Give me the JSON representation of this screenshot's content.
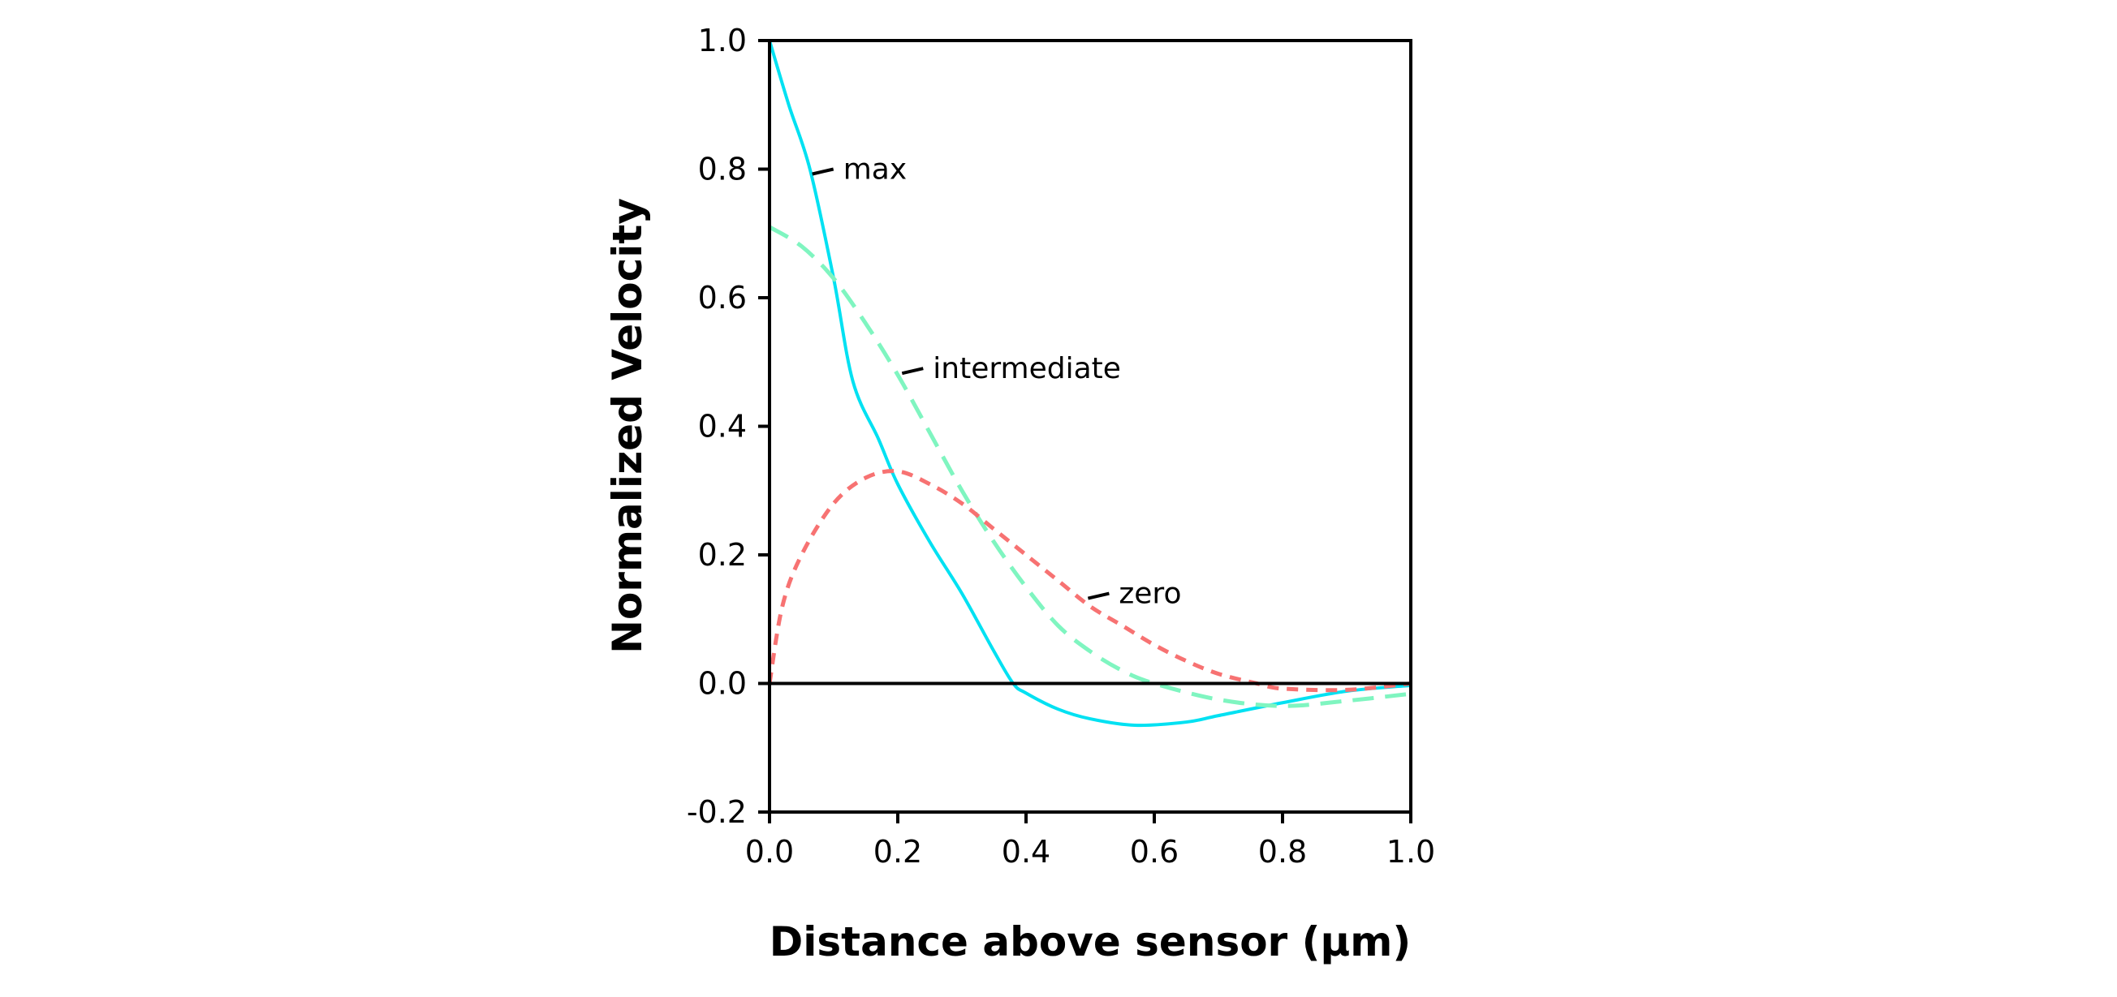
{
  "chart_data": {
    "type": "line",
    "title": "",
    "xlabel": "Distance above sensor (µm)",
    "ylabel": "Normalized Velocity",
    "xlim": [
      0.0,
      1.0
    ],
    "ylim": [
      -0.2,
      1.0
    ],
    "xticks": [
      "0.0",
      "0.2",
      "0.4",
      "0.6",
      "0.8",
      "1.0"
    ],
    "yticks": [
      "-0.2",
      "0.0",
      "0.2",
      "0.4",
      "0.6",
      "0.8",
      "1.0"
    ],
    "grid": false,
    "legend": "none (inline labels)",
    "zero_line": true,
    "series": [
      {
        "name": "max",
        "color": "#00e1f2",
        "style": "solid",
        "x": [
          0.0,
          0.03,
          0.063,
          0.1,
          0.13,
          0.17,
          0.2,
          0.25,
          0.3,
          0.35,
          0.38,
          0.4,
          0.45,
          0.5,
          0.57,
          0.65,
          0.7,
          0.8,
          0.9,
          1.0
        ],
        "y": [
          1.0,
          0.9,
          0.8,
          0.63,
          0.47,
          0.38,
          0.31,
          0.22,
          0.14,
          0.05,
          0.0,
          -0.015,
          -0.04,
          -0.055,
          -0.065,
          -0.06,
          -0.05,
          -0.03,
          -0.012,
          -0.003
        ]
      },
      {
        "name": "intermediate",
        "color": "#7ff5c0",
        "style": "dashed",
        "x": [
          0.0,
          0.05,
          0.1,
          0.15,
          0.2,
          0.25,
          0.3,
          0.35,
          0.4,
          0.45,
          0.5,
          0.55,
          0.6,
          0.7,
          0.8,
          0.9,
          1.0
        ],
        "y": [
          0.71,
          0.68,
          0.63,
          0.56,
          0.48,
          0.39,
          0.3,
          0.22,
          0.15,
          0.09,
          0.05,
          0.02,
          0.0,
          -0.025,
          -0.035,
          -0.027,
          -0.016
        ]
      },
      {
        "name": "zero",
        "color": "#f77272",
        "style": "dotted",
        "x": [
          0.0,
          0.02,
          0.05,
          0.1,
          0.15,
          0.2,
          0.25,
          0.3,
          0.35,
          0.4,
          0.45,
          0.5,
          0.55,
          0.6,
          0.65,
          0.7,
          0.76,
          0.8,
          0.9,
          1.0
        ],
        "y": [
          0.0,
          0.12,
          0.2,
          0.28,
          0.32,
          0.33,
          0.31,
          0.28,
          0.24,
          0.2,
          0.16,
          0.12,
          0.09,
          0.06,
          0.035,
          0.015,
          0.0,
          -0.008,
          -0.01,
          0.0
        ]
      }
    ],
    "annotations": [
      {
        "text": "max",
        "series": "max",
        "at": [
          0.13,
          0.8
        ]
      },
      {
        "text": "intermediate",
        "series": "intermediate",
        "at": [
          0.27,
          0.49
        ]
      },
      {
        "text": "zero",
        "series": "zero",
        "at": [
          0.56,
          0.14
        ]
      }
    ]
  }
}
